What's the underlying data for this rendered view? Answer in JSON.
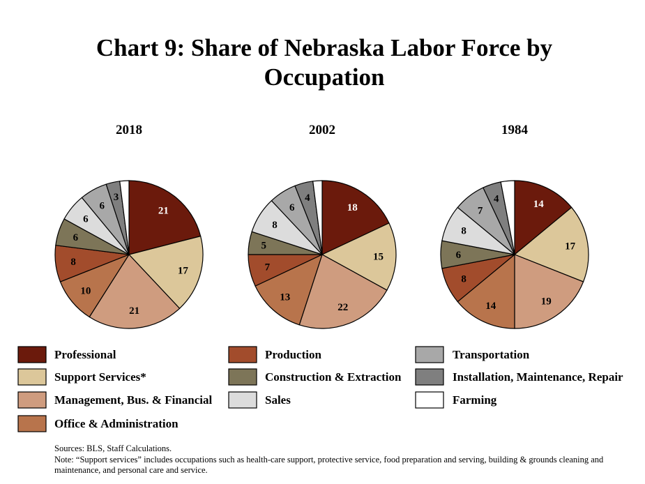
{
  "chart_data": {
    "type": "pie",
    "title": "Chart 9: Share of Nebraska Labor Force by Occupation",
    "categories": [
      "Professional",
      "Support Services*",
      "Management, Bus. & Financial",
      "Office & Administration",
      "Production",
      "Construction & Extraction",
      "Sales",
      "Transportation",
      "Installation, Maintenance, Repair",
      "Farming"
    ],
    "colors": [
      "#6b1a0c",
      "#dcc79a",
      "#cf9c7f",
      "#b8744c",
      "#a24c2c",
      "#7d7558",
      "#dcdcdc",
      "#a8a8a8",
      "#7f7f7f",
      "#ffffff"
    ],
    "series": [
      {
        "name": "2018",
        "values": [
          21,
          17,
          21,
          10,
          8,
          6,
          6,
          6,
          3,
          2
        ],
        "labels": [
          "21",
          "17",
          "21",
          "10",
          "8",
          "6",
          "6",
          "6",
          "3",
          ""
        ]
      },
      {
        "name": "2002",
        "values": [
          18,
          15,
          22,
          13,
          7,
          5,
          8,
          6,
          4,
          2
        ],
        "labels": [
          "18",
          "15",
          "22",
          "13",
          "7",
          "5",
          "8",
          "6",
          "4",
          ""
        ]
      },
      {
        "name": "1984",
        "values": [
          14,
          17,
          19,
          14,
          8,
          6,
          8,
          7,
          4,
          3
        ],
        "labels": [
          "14",
          "17",
          "19",
          "14",
          "8",
          "6",
          "8",
          "7",
          "4",
          ""
        ]
      }
    ],
    "legend_position": "bottom"
  },
  "footer": {
    "sources": "Sources: BLS, Staff Calculations.",
    "note": "Note: “Support services” includes occupations such as health-care support, protective service, food preparation and serving, building & grounds cleaning and maintenance, and personal care and service."
  }
}
